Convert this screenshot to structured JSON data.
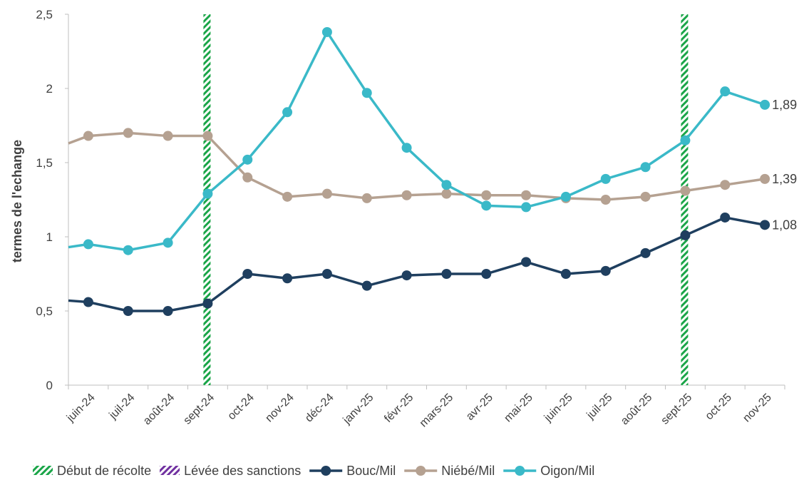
{
  "chart_data": {
    "type": "line",
    "title": "",
    "xlabel": "",
    "ylabel": "termes de l'echange",
    "ylim": [
      0,
      2.5
    ],
    "yticks": [
      "0",
      "0,5",
      "1",
      "1,5",
      "2",
      "2,5"
    ],
    "yticks_values": [
      0,
      0.5,
      1,
      1.5,
      2,
      2.5
    ],
    "categories": [
      "juin-24",
      "juil-24",
      "août-24",
      "sept-24",
      "oct-24",
      "nov-24",
      "déc-24",
      "janv-25",
      "févr-25",
      "mars-25",
      "avr-25",
      "mai-25",
      "juin-25",
      "juil-25",
      "août-25",
      "sept-25",
      "oct-25",
      "nov-25"
    ],
    "series": [
      {
        "name": "Bouc/Mil",
        "color": "#1f3f5f",
        "start_value": 0.57,
        "values": [
          0.56,
          0.5,
          0.5,
          0.55,
          0.75,
          0.72,
          0.75,
          0.67,
          0.74,
          0.75,
          0.75,
          0.83,
          0.75,
          0.77,
          0.89,
          1.01,
          1.13,
          1.08
        ],
        "end_label": "1,08"
      },
      {
        "name": "Niébé/Mil",
        "color": "#b5a191",
        "start_value": 1.63,
        "values": [
          1.68,
          1.7,
          1.68,
          1.68,
          1.4,
          1.27,
          1.29,
          1.26,
          1.28,
          1.29,
          1.28,
          1.28,
          1.26,
          1.25,
          1.27,
          1.31,
          1.35,
          1.39
        ],
        "end_label": "1,39"
      },
      {
        "name": "Oigon/Mil",
        "color": "#3ab9c8",
        "start_value": 0.93,
        "values": [
          0.95,
          0.91,
          0.96,
          1.29,
          1.52,
          1.84,
          2.38,
          1.97,
          1.6,
          1.35,
          1.21,
          1.2,
          1.27,
          1.39,
          1.47,
          1.65,
          1.98,
          1.89
        ],
        "end_label": "1,89"
      }
    ],
    "markers": [
      {
        "name": "Début de récolte",
        "color": "#1aa548",
        "at": [
          "sept-24",
          "sept-25"
        ]
      },
      {
        "name": "Lévée des sanctions",
        "color": "#7030a0",
        "at": []
      }
    ],
    "legend": {
      "position": "bottom",
      "items": [
        "Début de récolte",
        "Lévée des sanctions",
        "Bouc/Mil",
        "Niébé/Mil",
        "Oigon/Mil"
      ]
    },
    "grid": false
  }
}
